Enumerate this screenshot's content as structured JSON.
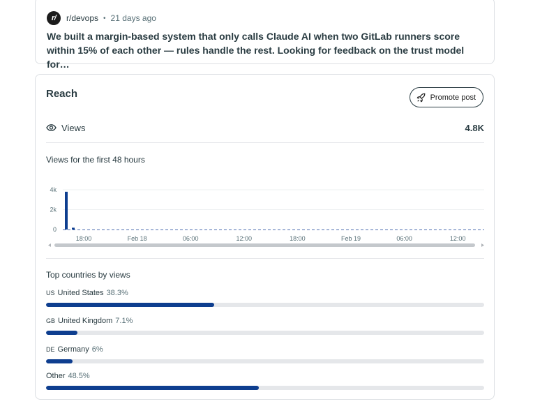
{
  "post": {
    "subreddit_initial": "r/",
    "subreddit": "r/devops",
    "separator": "•",
    "age": "21 days ago",
    "title": "We built a margin-based system that only calls Claude AI when two GitLab runners score within 15% of each other — rules handle the rest. Looking for feedback on the trust model for…"
  },
  "reach": {
    "title": "Reach",
    "promote_label": "Promote post",
    "views_label": "Views",
    "views_value": "4.8K",
    "chart_title": "Views for the first 48 hours",
    "countries_title": "Top countries by views"
  },
  "chart_data": {
    "type": "bar",
    "title": "Views for the first 48 hours",
    "y_ticks": [
      "4k",
      "2k",
      "0"
    ],
    "ylim": [
      0,
      4000
    ],
    "x_tick_labels": [
      "18:00",
      "Feb 18",
      "06:00",
      "12:00",
      "18:00",
      "Feb 19",
      "06:00",
      "12:00"
    ],
    "bar_color": "#0e3e8f",
    "values": [
      3800,
      180,
      0,
      0,
      0,
      0,
      0,
      0,
      0,
      0,
      0,
      0,
      0,
      0,
      0,
      0,
      0,
      0,
      0,
      0,
      0,
      0,
      0,
      0,
      0,
      0,
      0,
      0,
      0,
      0,
      0,
      0,
      0,
      0,
      0,
      0,
      0,
      0,
      0,
      0,
      0,
      0,
      0,
      0,
      0,
      0,
      0,
      0
    ],
    "grid": true
  },
  "countries": [
    {
      "code": "US",
      "name": "United States",
      "percent_label": "38.3%",
      "fraction": 0.383
    },
    {
      "code": "GB",
      "name": "United Kingdom",
      "percent_label": "7.1%",
      "fraction": 0.071
    },
    {
      "code": "DE",
      "name": "Germany",
      "percent_label": "6%",
      "fraction": 0.06
    },
    {
      "code": "",
      "name": "Other",
      "percent_label": "48.5%",
      "fraction": 0.485
    }
  ],
  "colors": {
    "accent": "#0e3e8f",
    "track": "#e5e7ea"
  },
  "icons": {
    "promote": "rocket-icon",
    "views": "eye-icon"
  }
}
